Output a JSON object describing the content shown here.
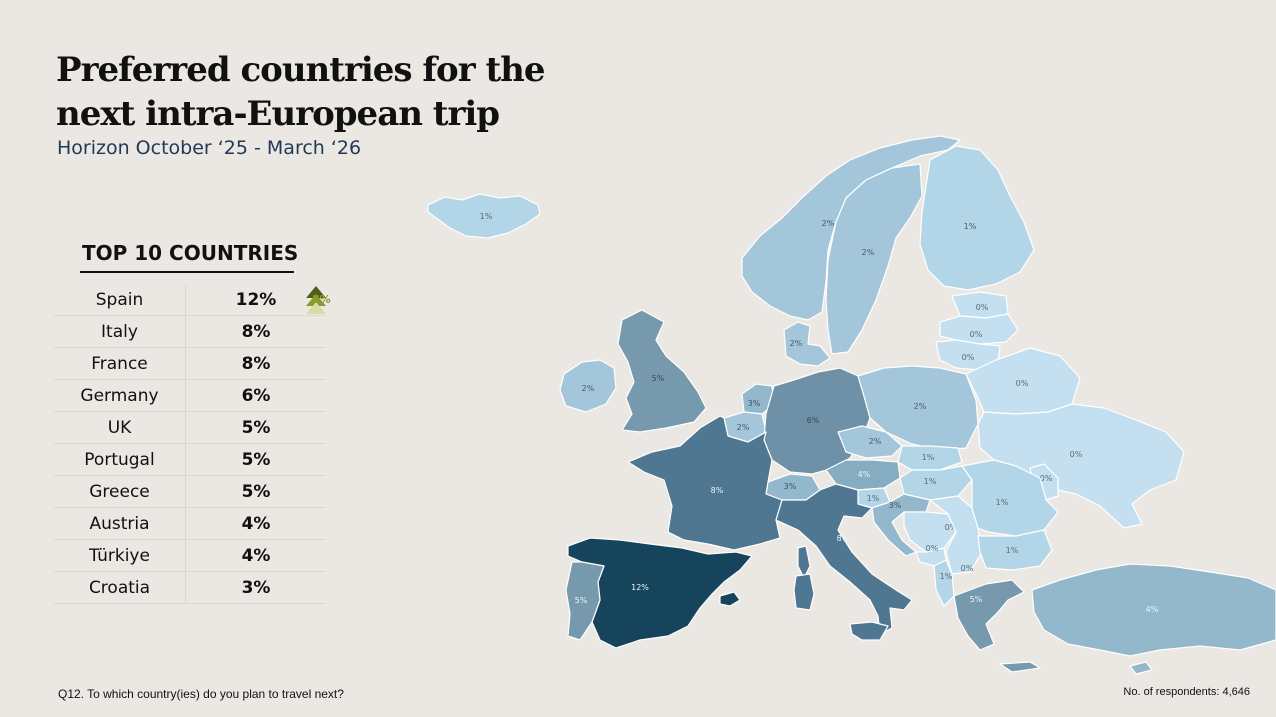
{
  "title": "Preferred countries for the next intra-European trip",
  "subtitle": "Horizon October ‘25 - March ‘26",
  "top10": {
    "heading": "TOP 10 COUNTRIES",
    "rows": [
      {
        "country": "Spain",
        "value": "12%",
        "change": "5%"
      },
      {
        "country": "Italy",
        "value": "8%"
      },
      {
        "country": "France",
        "value": "8%"
      },
      {
        "country": "Germany",
        "value": "6%"
      },
      {
        "country": "UK",
        "value": "5%"
      },
      {
        "country": "Portugal",
        "value": "5%"
      },
      {
        "country": "Greece",
        "value": "5%"
      },
      {
        "country": "Austria",
        "value": "4%"
      },
      {
        "country": "Türkiye",
        "value": "4%"
      },
      {
        "country": "Croatia",
        "value": "3%"
      }
    ]
  },
  "map": {
    "labels": {
      "iceland": "1%",
      "norway": "2%",
      "sweden": "2%",
      "finland": "1%",
      "estonia": "0%",
      "latvia": "0%",
      "lithuania": "0%",
      "denmark": "2%",
      "ireland": "2%",
      "uk": "5%",
      "netherlands": "3%",
      "belgium": "2%",
      "germany": "6%",
      "poland": "2%",
      "belarus": "0%",
      "ukraine": "0%",
      "moldova": "0%",
      "czechia": "2%",
      "slovakia": "1%",
      "austria": "4%",
      "hungary": "1%",
      "switzerland": "3%",
      "slovenia": "1%",
      "croatia": "3%",
      "bosnia": "0%",
      "serbia": "0%",
      "montenegro": "0%",
      "albania": "1%",
      "romania": "1%",
      "bulgaria": "1%",
      "france": "8%",
      "italy": "8%",
      "spain": "12%",
      "portugal": "5%",
      "greece": "5%",
      "turkiye": "4%"
    }
  },
  "colors": {
    "background": "#ebe7e2",
    "shade_0": "#c3dff0",
    "shade_1": "#b3d5e8",
    "shade_2": "#a4c6da",
    "shade_3": "#93b8cb",
    "shade_4": "#86acc2",
    "shade_5": "#7699ae",
    "shade_6": "#6e91a7",
    "shade_8": "#4f7792",
    "shade_12": "#15445c",
    "trend_up": "#4f5d1f",
    "trend_label": "#8a9a2c"
  },
  "footnote": "Q12. To which country(ies) do you plan to travel next?",
  "respondents": "No. of respondents: 4,646"
}
